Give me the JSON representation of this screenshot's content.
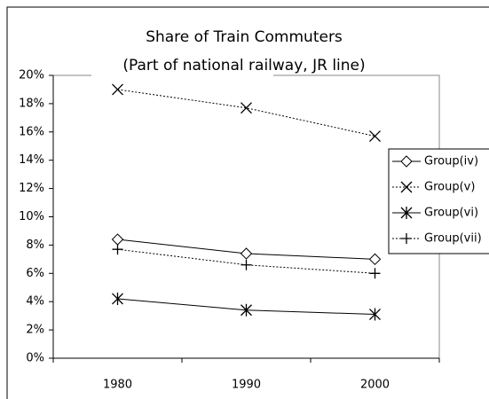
{
  "chart_data": {
    "type": "line",
    "title": "Share of Train Commuters",
    "subtitle": "(Part of national railway, JR line)",
    "categories": [
      "1980",
      "1990",
      "2000"
    ],
    "series": [
      {
        "name": "Group(iv)",
        "color": "#000000",
        "dash": "solid",
        "marker": "diamond",
        "values": [
          8.4,
          7.4,
          7.0
        ]
      },
      {
        "name": "Group(v)",
        "color": "#000000",
        "dash": "dotted",
        "marker": "x",
        "values": [
          19.0,
          17.7,
          15.7
        ]
      },
      {
        "name": "Group(vi)",
        "color": "#000000",
        "dash": "solid",
        "marker": "asterisk",
        "values": [
          4.2,
          3.4,
          3.1
        ]
      },
      {
        "name": "Group(vii)",
        "color": "#000000",
        "dash": "dotted",
        "marker": "plus",
        "values": [
          7.7,
          6.6,
          6.0
        ]
      }
    ],
    "ylim": [
      0,
      20
    ],
    "yticks": [
      {
        "value": 0,
        "label": "0%"
      },
      {
        "value": 2,
        "label": "2%"
      },
      {
        "value": 4,
        "label": "4%"
      },
      {
        "value": 6,
        "label": "6%"
      },
      {
        "value": 8,
        "label": "8%"
      },
      {
        "value": 10,
        "label": "10%"
      },
      {
        "value": 12,
        "label": "12%"
      },
      {
        "value": 14,
        "label": "14%"
      },
      {
        "value": 16,
        "label": "16%"
      },
      {
        "value": 18,
        "label": "18%"
      },
      {
        "value": 20,
        "label": "20%"
      }
    ],
    "legend": "right"
  }
}
